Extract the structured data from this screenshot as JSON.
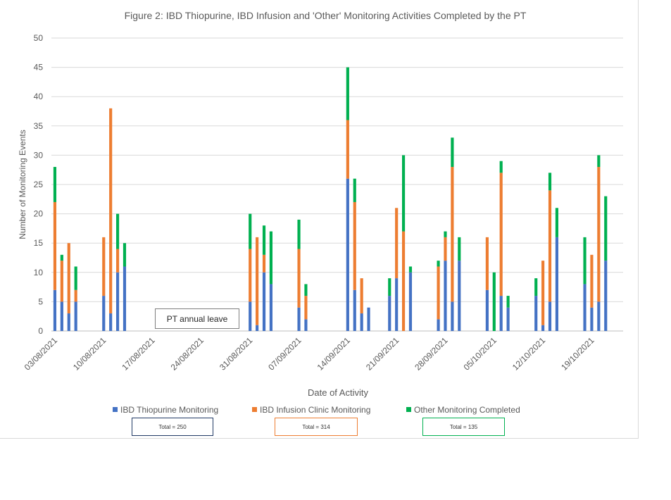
{
  "chart_data": {
    "type": "bar",
    "stacked": true,
    "title": "Figure 2: IBD Thiopurine, IBD Infusion and 'Other' Monitoring Activities Completed by the PT",
    "xlabel": "Date of Activity",
    "ylabel": "Number  of Monitoring Events",
    "ylim": [
      0,
      50
    ],
    "yticks": [
      0,
      5,
      10,
      15,
      20,
      25,
      30,
      35,
      40,
      45,
      50
    ],
    "grid": true,
    "legend_position": "bottom",
    "x_axis": {
      "type": "date",
      "start": "03/08/2021",
      "end": "23/10/2021"
    },
    "xticks": [
      "03/08/2021",
      "10/08/2021",
      "17/08/2021",
      "24/08/2021",
      "31/08/2021",
      "07/09/2021",
      "14/09/2021",
      "21/09/2021",
      "28/09/2021",
      "05/10/2021",
      "12/10/2021",
      "19/10/2021"
    ],
    "dates": [
      "03/08/2021",
      "04/08/2021",
      "05/08/2021",
      "06/08/2021",
      "10/08/2021",
      "11/08/2021",
      "12/08/2021",
      "13/08/2021",
      "31/08/2021",
      "01/09/2021",
      "02/09/2021",
      "03/09/2021",
      "07/09/2021",
      "08/09/2021",
      "14/09/2021",
      "15/09/2021",
      "16/09/2021",
      "17/09/2021",
      "20/09/2021",
      "21/09/2021",
      "22/09/2021",
      "23/09/2021",
      "27/09/2021",
      "28/09/2021",
      "29/09/2021",
      "30/09/2021",
      "04/10/2021",
      "05/10/2021",
      "06/10/2021",
      "07/10/2021",
      "11/10/2021",
      "12/10/2021",
      "13/10/2021",
      "14/10/2021",
      "18/10/2021",
      "19/10/2021",
      "20/10/2021",
      "21/10/2021"
    ],
    "series": [
      {
        "name": "IBD Thiopurine Monitoring",
        "color": "#4472c4",
        "values": [
          7,
          5,
          3,
          5,
          6,
          3,
          10,
          11,
          5,
          1,
          10,
          8,
          4,
          2,
          26,
          7,
          3,
          4,
          6,
          9,
          0,
          10,
          2,
          12,
          5,
          12,
          7,
          0,
          6,
          4,
          6,
          1,
          5,
          16,
          8,
          4,
          5,
          12
        ]
      },
      {
        "name": "IBD Infusion Clinic Monitoring",
        "color": "#ed7d31",
        "values": [
          15,
          7,
          12,
          2,
          10,
          35,
          4,
          0,
          9,
          15,
          3,
          0,
          10,
          4,
          10,
          15,
          6,
          0,
          0,
          12,
          17,
          0,
          9,
          4,
          23,
          0,
          9,
          0,
          21,
          0,
          0,
          11,
          19,
          0,
          0,
          9,
          23,
          0
        ]
      },
      {
        "name": "Other Monitoring Completed",
        "color": "#00b050",
        "values": [
          6,
          1,
          0,
          4,
          0,
          0,
          6,
          4,
          6,
          0,
          5,
          9,
          5,
          2,
          9,
          4,
          0,
          0,
          3,
          0,
          13,
          1,
          1,
          1,
          5,
          4,
          0,
          10,
          2,
          2,
          3,
          0,
          3,
          5,
          8,
          0,
          2,
          11
        ]
      }
    ],
    "annotations": [
      "PT annual leave"
    ]
  },
  "totals": [
    {
      "label": "Total = 250",
      "color": "#1f3864"
    },
    {
      "label": "Total = 314",
      "color": "#ed7d31"
    },
    {
      "label": "Total = 135",
      "color": "#00b050"
    }
  ]
}
